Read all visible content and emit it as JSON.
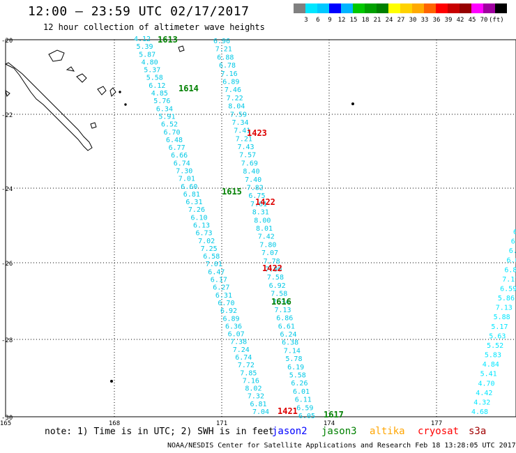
{
  "header": {
    "title": "12:00 – 23:59 UTC 02/17/2017",
    "subtitle": "12 hour collection of altimeter wave heights"
  },
  "colorbar": {
    "colors": [
      "#808080",
      "#00e6ff",
      "#00c8ff",
      "#0000ff",
      "#00b4ff",
      "#00c800",
      "#00a000",
      "#008000",
      "#ffff00",
      "#ffd200",
      "#ffaa00",
      "#ff6400",
      "#ff0000",
      "#c80000",
      "#960000",
      "#ff00ff",
      "#a000a0",
      "#000000"
    ],
    "labels": [
      "3",
      "6",
      "9",
      "12",
      "15",
      "18",
      "21",
      "24",
      "27",
      "30",
      "33",
      "36",
      "39",
      "42",
      "45",
      "70",
      "(ft)"
    ]
  },
  "axes": {
    "lat_labels": [
      "-20",
      "-22",
      "-24",
      "-26",
      "-28",
      "-30"
    ],
    "lon_labels": [
      "165",
      "168",
      "171",
      "174",
      "177"
    ]
  },
  "track_west": {
    "color": "#00c8e6",
    "values": [
      "4.12",
      "5.39",
      "5.87",
      "4.80",
      "5.37",
      "5.58",
      "6.12",
      "4.85",
      "5.76",
      "6.34",
      "5.91",
      "6.52",
      "6.70",
      "6.48",
      "6.77",
      "6.66",
      "6.74",
      "7.30",
      "7.01",
      "6.60",
      "6.81",
      "6.31",
      "7.26",
      "6.10",
      "6.13",
      "6.73",
      "7.02",
      "7.25",
      "6.58",
      "7.01",
      "6.47",
      "6.17",
      "6.27",
      "6.31",
      "6.70",
      "6.92",
      "6.89",
      "6.36",
      "6.07",
      "7.38",
      "7.24",
      "6.74",
      "7.72",
      "7.85",
      "7.16",
      "8.02",
      "7.32",
      "6.81",
      "7.04"
    ]
  },
  "track_mid": {
    "color": "#00c8e6",
    "values": [
      "6.96",
      "7.21",
      "6.88",
      "6.78",
      "7.16",
      "6.89",
      "7.46",
      "7.22",
      "8.04",
      "7.59",
      "7.34",
      "7.41",
      "7.21",
      "7.43",
      "7.57",
      "7.69",
      "8.40",
      "7.40",
      "7.82",
      "6.75",
      "7.61",
      "8.31",
      "8.00",
      "8.01",
      "7.42",
      "7.80",
      "7.07",
      "7.78",
      "7.90",
      "7.58",
      "6.92",
      "7.58",
      "7.34",
      "7.13",
      "6.86",
      "6.61",
      "6.24",
      "6.38",
      "7.14",
      "5.78",
      "6.19",
      "5.58",
      "6.26",
      "6.01",
      "6.11",
      "6.59",
      "6.05"
    ]
  },
  "track_east": {
    "color": "#00e6ff",
    "values": [
      "6",
      "6.",
      "6.",
      "6.6",
      "6.8",
      "7.17",
      "6.59",
      "5.86",
      "7.13",
      "5.88",
      "5.17",
      "5.63",
      "5.52",
      "5.83",
      "4.84",
      "5.41",
      "4.70",
      "4.42",
      "4.32",
      "4.68"
    ]
  },
  "time_labels": [
    {
      "text": "1613",
      "color": "#008000"
    },
    {
      "text": "1614",
      "color": "#008000"
    },
    {
      "text": "1423",
      "color": "#dd0000"
    },
    {
      "text": "1615",
      "color": "#008000"
    },
    {
      "text": "1422",
      "color": "#dd0000"
    },
    {
      "text": "1422",
      "color": "#dd0000"
    },
    {
      "text": "1616",
      "color": "#008000"
    },
    {
      "text": "1421",
      "color": "#dd0000"
    },
    {
      "text": "1617",
      "color": "#008000"
    }
  ],
  "footer": {
    "note": "note: 1) Time is in UTC; 2) SWH is in feet",
    "legend": [
      {
        "text": "jason2",
        "color": "#0000ff"
      },
      {
        "text": "jason3",
        "color": "#008000"
      },
      {
        "text": "altika",
        "color": "#ffa500"
      },
      {
        "text": "cryosat",
        "color": "#ff0000"
      },
      {
        "text": "s3a",
        "color": "#a00000"
      }
    ],
    "credit": "NOAA/NESDIS Center for Satellite Applications and Research    Feb 18 13:28:05 UTC 2017"
  }
}
